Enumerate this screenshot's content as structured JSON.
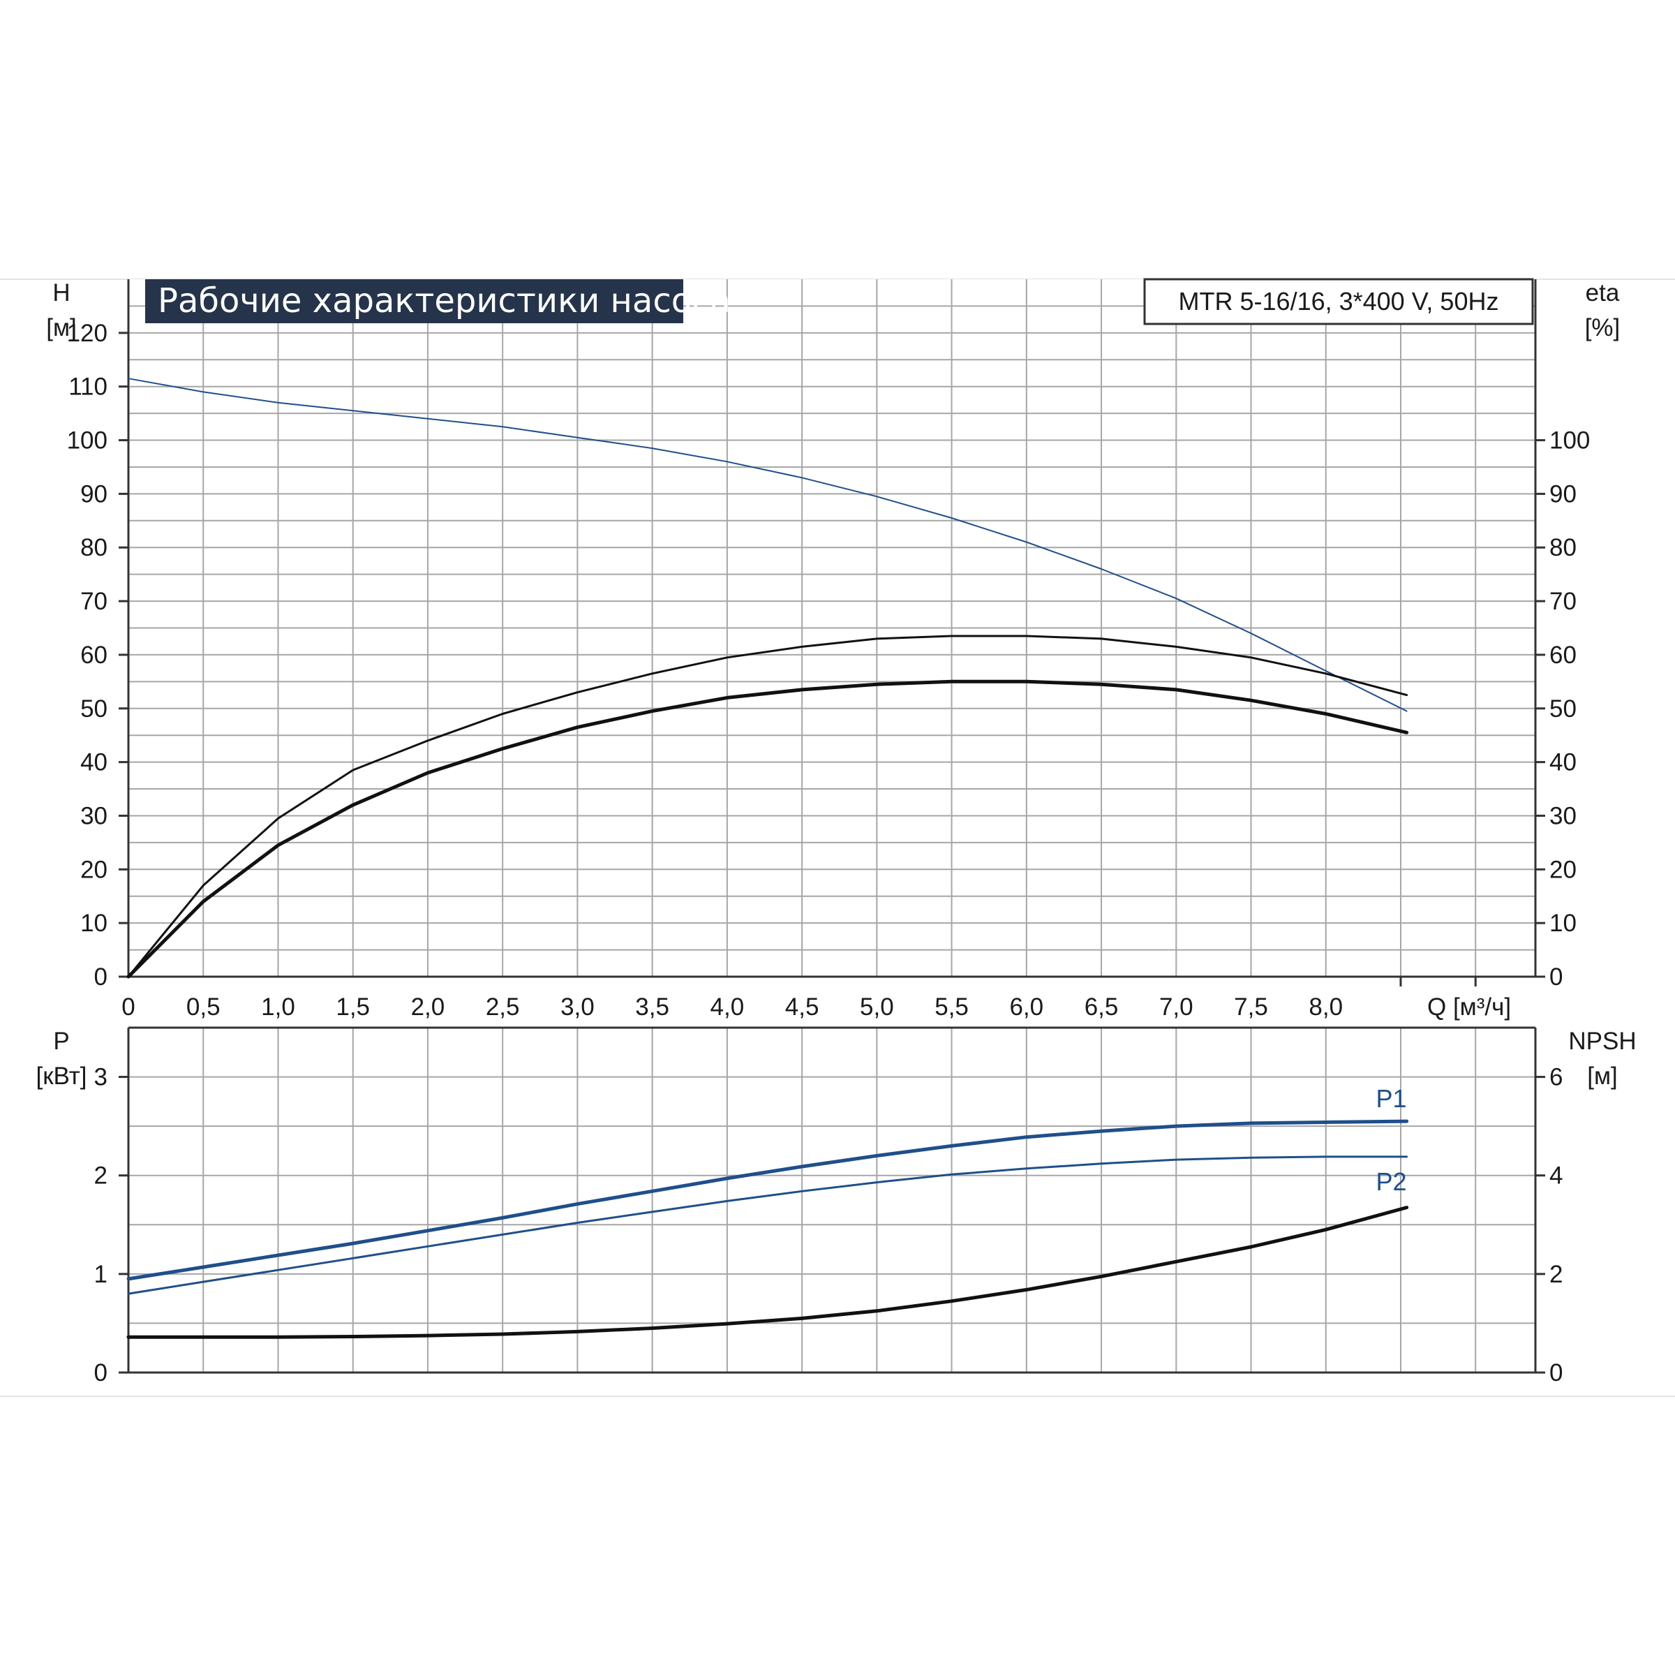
{
  "colors": {
    "blue": "#1f4f8b",
    "black": "#111111",
    "grid": "#a6a6a6",
    "title_bg": "#25344b"
  },
  "chart_data": [
    {
      "type": "line",
      "title": "Рабочие характеристики насоса",
      "model_label": "MTR 5-16/16, 3*400 V, 50Hz",
      "x_label": "Q [м³/ч]",
      "xlim": [
        0,
        9.4
      ],
      "x_ticks": [
        "0",
        "0,5",
        "1,0",
        "1,5",
        "2,0",
        "2,5",
        "3,0",
        "3,5",
        "4,0",
        "4,5",
        "5,0",
        "5,5",
        "6,0",
        "6,5",
        "7,0",
        "7,5",
        "8,0"
      ],
      "left_axis": {
        "label_top": "H",
        "label_unit": "[м]",
        "ylim": [
          0,
          130
        ],
        "ticks": [
          "0",
          "10",
          "20",
          "30",
          "40",
          "50",
          "60",
          "70",
          "80",
          "90",
          "100",
          "110",
          "120"
        ]
      },
      "right_axis": {
        "label_top": "eta",
        "label_unit": "[%]",
        "ylim": [
          0,
          130
        ],
        "ticks": [
          "0",
          "10",
          "20",
          "30",
          "40",
          "50",
          "60",
          "70",
          "80",
          "90",
          "100"
        ]
      },
      "grid": true,
      "series": [
        {
          "axis": "left",
          "color": "blue",
          "x": [
            0,
            0.5,
            1.0,
            1.5,
            2.0,
            2.5,
            3.0,
            3.5,
            4.0,
            4.5,
            5.0,
            5.5,
            6.0,
            6.5,
            7.0,
            7.5,
            8.0,
            8.54
          ],
          "values": [
            111.5,
            109,
            107,
            105.5,
            104,
            102.5,
            100.5,
            98.5,
            96,
            93,
            89.5,
            85.5,
            81,
            76,
            70.5,
            64,
            57,
            49.5
          ]
        },
        {
          "axis": "right",
          "color": "black",
          "x": [
            0,
            0.5,
            1.0,
            1.5,
            2.0,
            2.5,
            3.0,
            3.5,
            4.0,
            4.5,
            5.0,
            5.5,
            6.0,
            6.5,
            7.0,
            7.5,
            8.0,
            8.54
          ],
          "values": [
            0,
            17,
            29.5,
            38.5,
            44,
            49,
            53,
            56.5,
            59.5,
            61.5,
            63,
            63.5,
            63.5,
            63,
            61.5,
            59.5,
            56.5,
            52.5
          ]
        },
        {
          "axis": "right",
          "color": "black",
          "x": [
            0,
            0.5,
            1.0,
            1.5,
            2.0,
            2.5,
            3.0,
            3.5,
            4.0,
            4.5,
            5.0,
            5.5,
            6.0,
            6.5,
            7.0,
            7.5,
            8.0,
            8.54
          ],
          "values": [
            0,
            14,
            24.5,
            32,
            38,
            42.5,
            46.5,
            49.5,
            52,
            53.5,
            54.5,
            55,
            55,
            54.5,
            53.5,
            51.5,
            49,
            45.5
          ]
        }
      ]
    },
    {
      "type": "line",
      "xlim": [
        0,
        9.4
      ],
      "left_axis": {
        "label_top": "P",
        "label_unit": "[кВт]",
        "ylim": [
          0,
          3.5
        ],
        "ticks": [
          "0",
          "1",
          "2",
          "3"
        ]
      },
      "right_axis": {
        "label_top": "NPSH",
        "label_unit": "[м]",
        "ylim": [
          0,
          7
        ],
        "ticks": [
          "0",
          "2",
          "4",
          "6"
        ]
      },
      "grid": true,
      "series": [
        {
          "name": "P1",
          "axis": "left",
          "color": "blue",
          "x": [
            0,
            0.5,
            1.0,
            1.5,
            2.0,
            2.5,
            3.0,
            3.5,
            4.0,
            4.5,
            5.0,
            5.5,
            6.0,
            6.5,
            7.0,
            7.5,
            8.0,
            8.54
          ],
          "values": [
            0.95,
            1.07,
            1.19,
            1.31,
            1.44,
            1.57,
            1.71,
            1.84,
            1.97,
            2.09,
            2.2,
            2.3,
            2.39,
            2.45,
            2.5,
            2.53,
            2.54,
            2.55
          ]
        },
        {
          "name": "P2",
          "axis": "left",
          "color": "blue",
          "x": [
            0,
            0.5,
            1.0,
            1.5,
            2.0,
            2.5,
            3.0,
            3.5,
            4.0,
            4.5,
            5.0,
            5.5,
            6.0,
            6.5,
            7.0,
            7.5,
            8.0,
            8.54
          ],
          "values": [
            0.8,
            0.92,
            1.04,
            1.16,
            1.28,
            1.4,
            1.52,
            1.63,
            1.74,
            1.84,
            1.93,
            2.01,
            2.07,
            2.12,
            2.16,
            2.18,
            2.19,
            2.19
          ]
        },
        {
          "axis": "right",
          "color": "black",
          "x": [
            0,
            0.5,
            1.0,
            1.5,
            2.0,
            2.5,
            3.0,
            3.5,
            4.0,
            4.5,
            5.0,
            5.5,
            6.0,
            6.5,
            7.0,
            7.5,
            8.0,
            8.54
          ],
          "values": [
            0.72,
            0.72,
            0.72,
            0.73,
            0.75,
            0.78,
            0.83,
            0.9,
            0.99,
            1.1,
            1.25,
            1.45,
            1.68,
            1.95,
            2.25,
            2.55,
            2.9,
            3.35
          ]
        }
      ]
    }
  ]
}
